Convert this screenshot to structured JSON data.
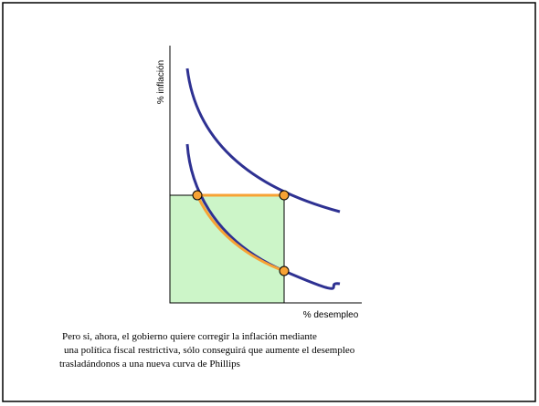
{
  "diagram": {
    "y_axis_label": "% inflación",
    "x_axis_label": "% desempleo",
    "caption": [
      "Pero si, ahora, el gobierno quiere corregir la inflación mediante",
      "una política fiscal restrictiva, sólo conseguirá que aumente el desempleo",
      "trasladándonos a una nueva curva de Phillips"
    ]
  }
}
